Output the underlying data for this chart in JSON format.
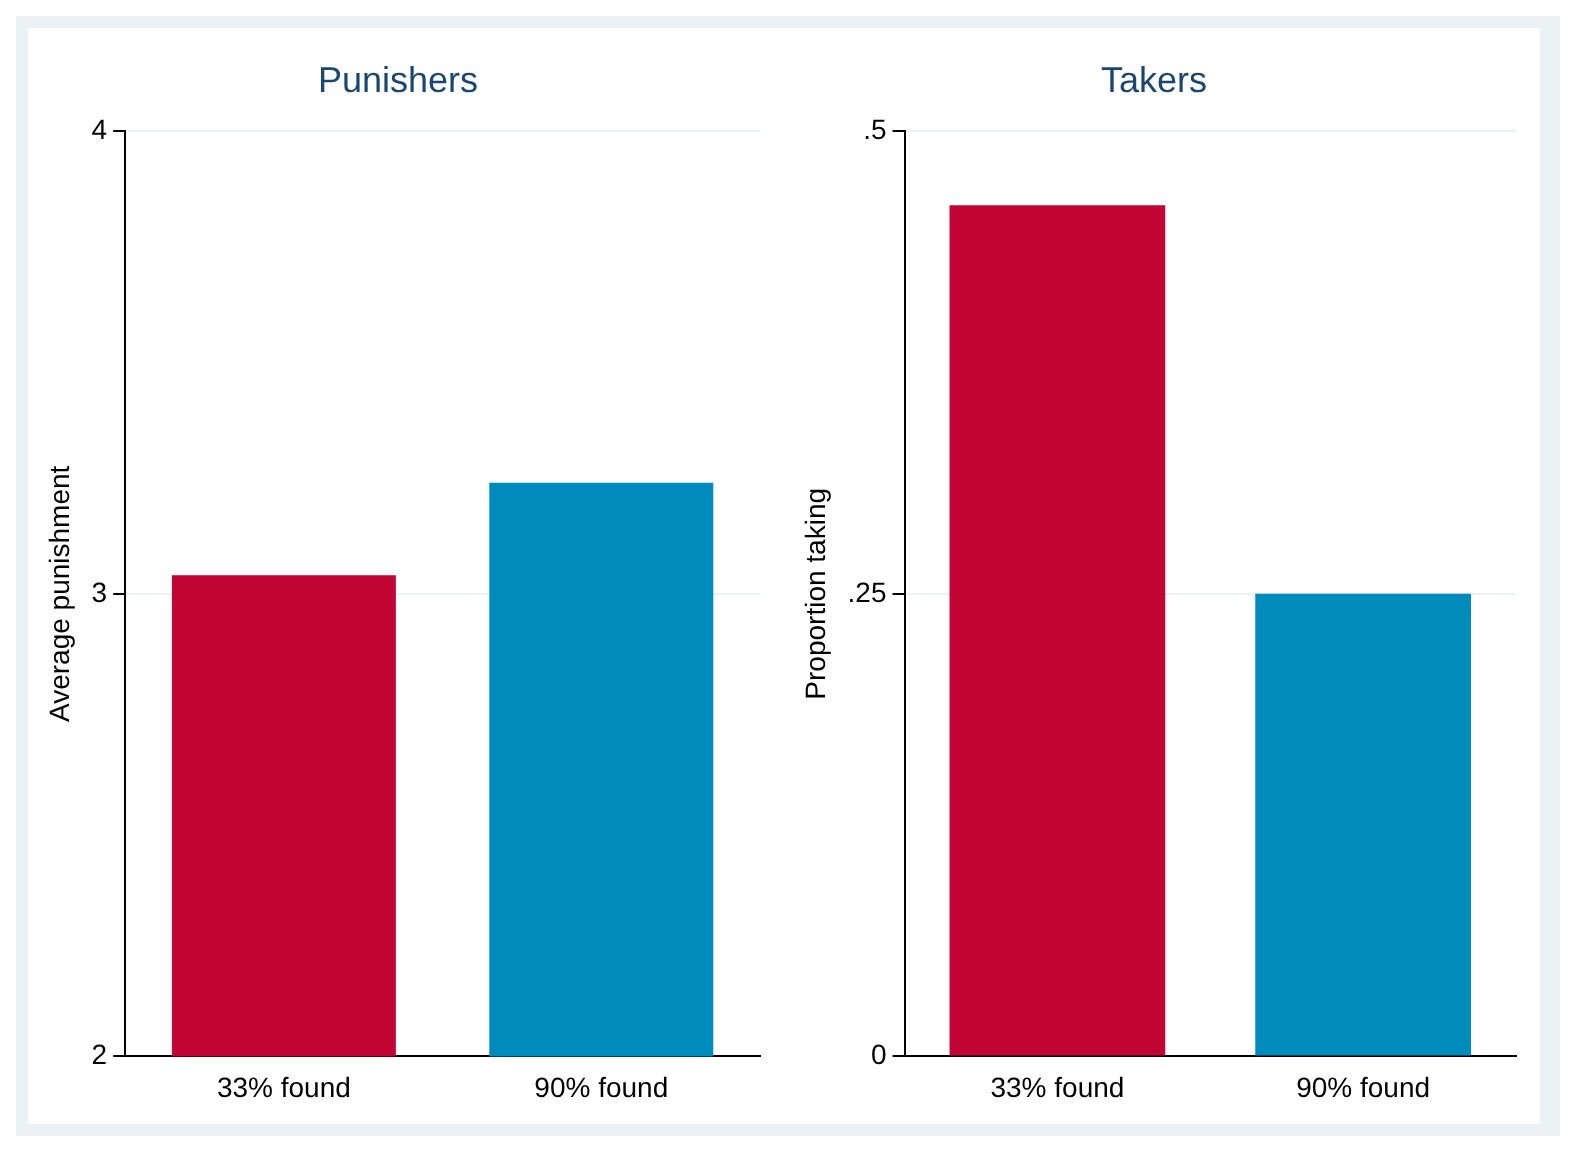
{
  "chart_data": [
    {
      "type": "bar",
      "title": "Punishers",
      "ylabel": "Average punishment",
      "categories": [
        "33% found",
        "90% found"
      ],
      "values": [
        3.04,
        3.24
      ],
      "colors": [
        "#c10534",
        "#008bbc"
      ],
      "ylim": [
        2,
        4
      ],
      "yticks": [
        2,
        3,
        4
      ],
      "grid": "y"
    },
    {
      "type": "bar",
      "title": "Takers",
      "ylabel": "Proportion taking",
      "categories": [
        "33% found",
        "90% found"
      ],
      "values": [
        0.46,
        0.25
      ],
      "colors": [
        "#c10534",
        "#008bbc"
      ],
      "ylim": [
        0,
        0.5
      ],
      "yticks": [
        {
          "value": 0,
          "label": "0"
        },
        {
          "value": 0.25,
          "label": ".25"
        },
        {
          "value": 0.5,
          "label": ".5"
        }
      ],
      "grid": "y"
    }
  ]
}
